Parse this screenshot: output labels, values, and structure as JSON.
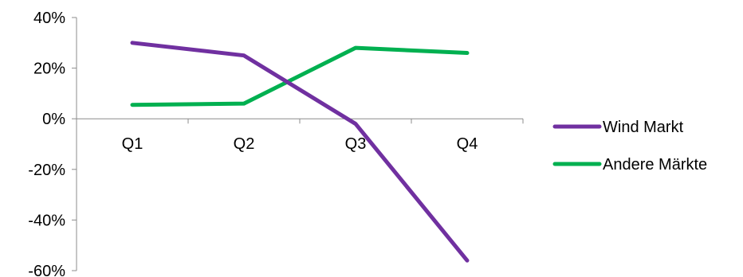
{
  "chart_data": {
    "type": "line",
    "categories": [
      "Q1",
      "Q2",
      "Q3",
      "Q4"
    ],
    "series": [
      {
        "name": "Wind Markt",
        "values": [
          0.3,
          0.25,
          -0.02,
          -0.56
        ],
        "color": "#7030A0"
      },
      {
        "name": "Andere Märkte",
        "values": [
          0.055,
          0.06,
          0.28,
          0.26
        ],
        "color": "#00B050"
      }
    ],
    "ylim": [
      -0.6,
      0.4
    ],
    "yticks": [
      -0.6,
      -0.4,
      -0.2,
      0.0,
      0.2,
      0.4
    ],
    "ytick_labels": [
      "-60%",
      "-40%",
      "-20%",
      "0%",
      "20%",
      "40%"
    ],
    "grid": false,
    "legend_position": "right"
  }
}
